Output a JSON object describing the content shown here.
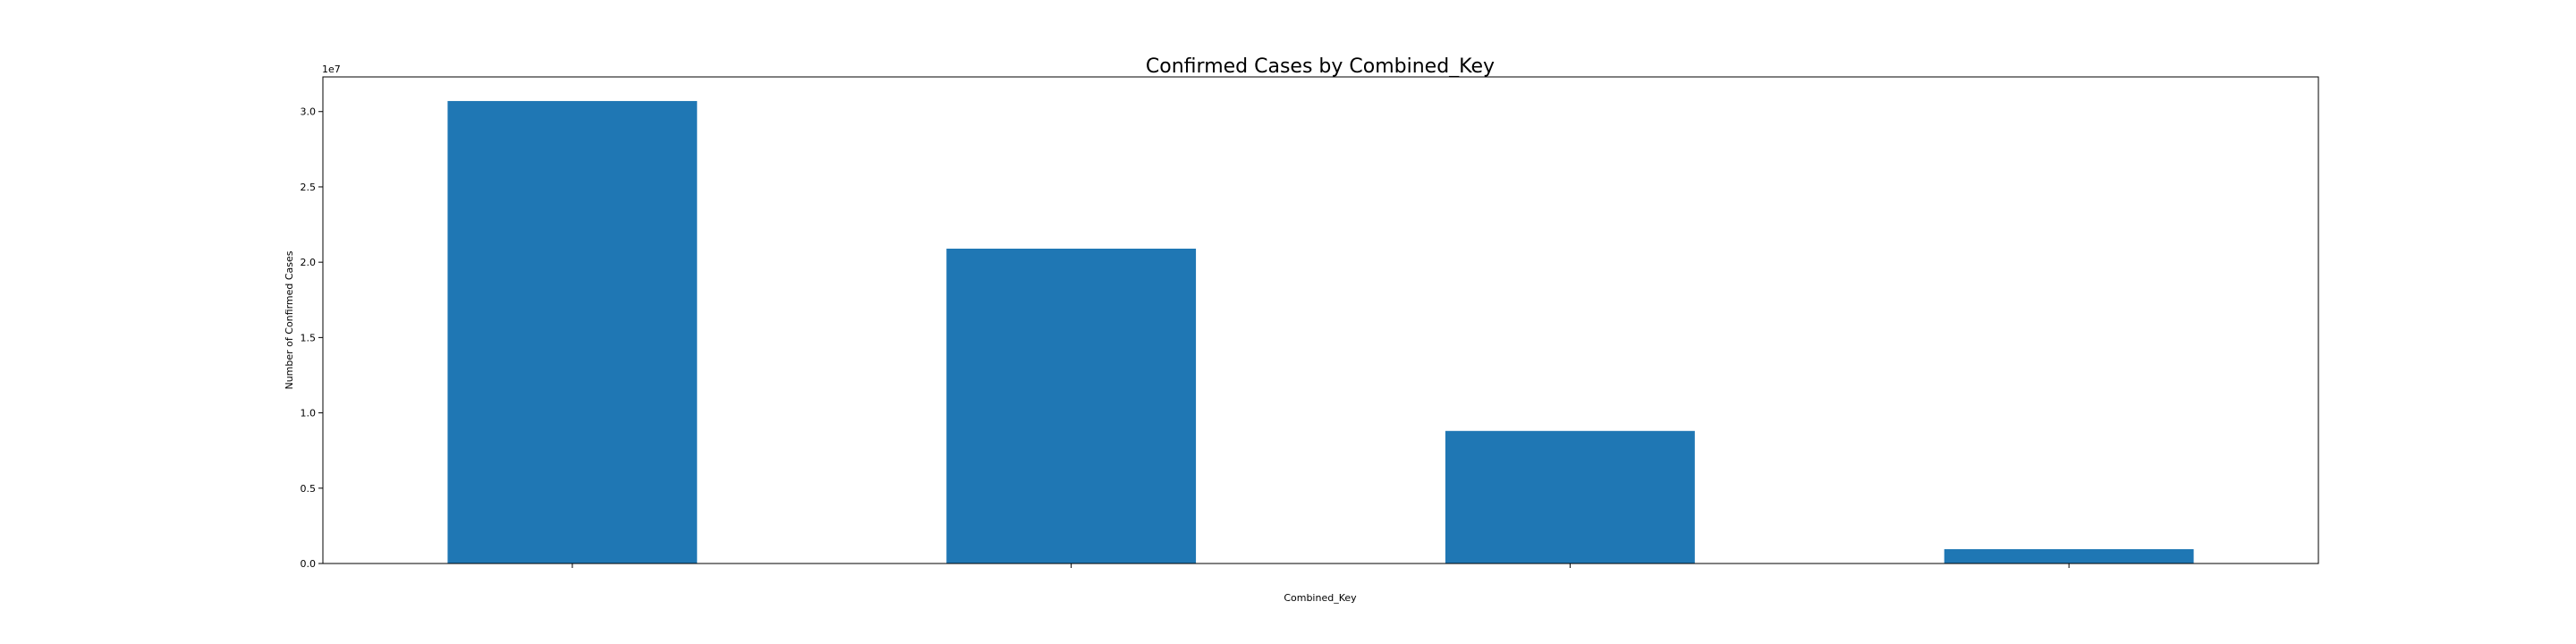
{
  "chart_data": {
    "type": "bar",
    "title": "Confirmed Cases by Combined_Key",
    "xlabel": "Combined_Key",
    "ylabel": "Number of Confirmed Cases",
    "y_offset_label": "1e7",
    "categories": [
      "",
      "",
      "",
      ""
    ],
    "values": [
      30700000,
      20900000,
      8800000,
      950000
    ],
    "ylim": [
      0,
      32300000
    ],
    "yticks": [
      0,
      5000000,
      10000000,
      15000000,
      20000000,
      25000000,
      30000000
    ],
    "ytick_labels": [
      "0.0",
      "0.5",
      "1.0",
      "1.5",
      "2.0",
      "2.5",
      "3.0"
    ],
    "bar_color": "#1f77b4",
    "grid": false,
    "legend": "none"
  }
}
